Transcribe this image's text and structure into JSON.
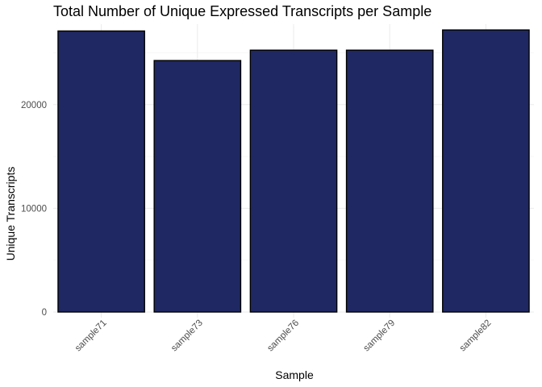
{
  "chart_data": {
    "type": "bar",
    "title": "Total Number of Unique Expressed Transcripts per Sample",
    "xlabel": "Sample",
    "ylabel": "Unique Transcripts",
    "categories": [
      "sample71",
      "sample73",
      "sample76",
      "sample79",
      "sample82"
    ],
    "values": [
      27100,
      24250,
      25250,
      25250,
      27200
    ],
    "ylim": [
      0,
      28300
    ],
    "yticks": [
      0,
      10000,
      20000
    ],
    "ytick_labels": [
      "0",
      "10000",
      "20000"
    ],
    "grid": true,
    "legend": "none",
    "bar_fill": "#1f2862",
    "bar_stroke": "#000000"
  }
}
